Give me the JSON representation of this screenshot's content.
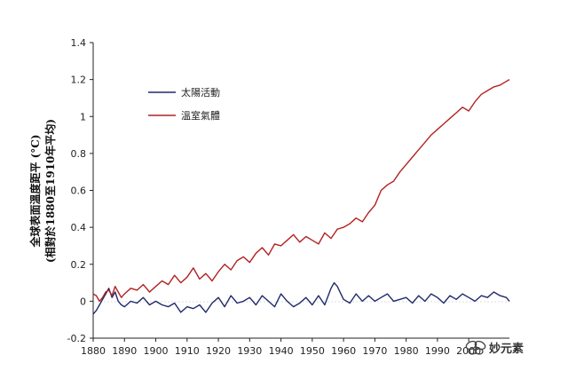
{
  "chart_data": {
    "type": "line",
    "ylabel_line1": "全球表面溫度距平 (°C)",
    "ylabel_line2": "(相對於1880至1910年平均)",
    "xlim": [
      1880,
      2013
    ],
    "ylim": [
      -0.2,
      1.4
    ],
    "x_ticks": [
      1880,
      1890,
      1900,
      1910,
      1920,
      1930,
      1940,
      1950,
      1960,
      1970,
      1980,
      1990,
      2000
    ],
    "x_tick_labels": [
      "1880",
      "1890",
      "1900",
      "1910",
      "1920",
      "1930",
      "1940",
      "1950",
      "1960",
      "1970",
      "1980",
      "1990",
      "2000"
    ],
    "y_ticks": [
      -0.2,
      0,
      0.2,
      0.4,
      0.6,
      0.8,
      1,
      1.2,
      1.4
    ],
    "y_tick_labels": [
      "-0.2",
      "0",
      "0.2",
      "0.4",
      "0.6",
      "0.8",
      "1",
      "1.2",
      "1.4"
    ],
    "grid": false,
    "legend_position": "upper-left",
    "series": [
      {
        "name": "太陽活動",
        "color": "#1f2a6b",
        "x": [
          1880,
          1881,
          1882,
          1883,
          1884,
          1885,
          1886,
          1887,
          1888,
          1889,
          1890,
          1892,
          1894,
          1896,
          1898,
          1900,
          1902,
          1904,
          1906,
          1908,
          1910,
          1912,
          1914,
          1916,
          1918,
          1920,
          1922,
          1924,
          1926,
          1928,
          1930,
          1932,
          1934,
          1936,
          1938,
          1940,
          1942,
          1944,
          1946,
          1948,
          1950,
          1952,
          1954,
          1956,
          1957,
          1958,
          1960,
          1962,
          1964,
          1966,
          1968,
          1970,
          1972,
          1974,
          1976,
          1978,
          1980,
          1982,
          1984,
          1986,
          1988,
          1990,
          1992,
          1994,
          1996,
          1998,
          2000,
          2002,
          2004,
          2006,
          2008,
          2010,
          2012,
          2013
        ],
        "y": [
          -0.07,
          -0.05,
          -0.02,
          0.01,
          0.04,
          0.07,
          0.02,
          0.05,
          0.0,
          -0.02,
          -0.03,
          0.0,
          -0.01,
          0.02,
          -0.02,
          0.0,
          -0.02,
          -0.03,
          -0.01,
          -0.06,
          -0.03,
          -0.04,
          -0.02,
          -0.06,
          -0.01,
          0.02,
          -0.03,
          0.03,
          -0.01,
          0.0,
          0.02,
          -0.02,
          0.03,
          0.0,
          -0.03,
          0.04,
          0.0,
          -0.03,
          -0.01,
          0.02,
          -0.02,
          0.03,
          -0.02,
          0.07,
          0.1,
          0.08,
          0.01,
          -0.01,
          0.04,
          0.0,
          0.03,
          0.0,
          0.02,
          0.04,
          0.0,
          0.01,
          0.02,
          -0.01,
          0.03,
          0.0,
          0.04,
          0.02,
          -0.01,
          0.03,
          0.01,
          0.04,
          0.02,
          0.0,
          0.03,
          0.02,
          0.05,
          0.03,
          0.02,
          0.0
        ]
      },
      {
        "name": "溫室氣體",
        "color": "#b22222",
        "x": [
          1880,
          1881,
          1882,
          1883,
          1884,
          1885,
          1886,
          1887,
          1888,
          1889,
          1890,
          1892,
          1894,
          1896,
          1898,
          1900,
          1902,
          1904,
          1906,
          1908,
          1910,
          1912,
          1914,
          1916,
          1918,
          1920,
          1922,
          1924,
          1926,
          1928,
          1930,
          1932,
          1934,
          1936,
          1938,
          1940,
          1942,
          1944,
          1946,
          1948,
          1950,
          1952,
          1954,
          1956,
          1958,
          1960,
          1962,
          1964,
          1966,
          1968,
          1970,
          1972,
          1974,
          1976,
          1978,
          1980,
          1982,
          1984,
          1986,
          1988,
          1990,
          1992,
          1994,
          1996,
          1998,
          2000,
          2002,
          2004,
          2006,
          2008,
          2010,
          2012,
          2013
        ],
        "y": [
          0.04,
          0.03,
          0.0,
          0.02,
          0.05,
          0.06,
          0.03,
          0.08,
          0.05,
          0.02,
          0.04,
          0.07,
          0.06,
          0.09,
          0.05,
          0.08,
          0.11,
          0.09,
          0.14,
          0.1,
          0.13,
          0.18,
          0.12,
          0.15,
          0.11,
          0.16,
          0.2,
          0.17,
          0.22,
          0.24,
          0.21,
          0.26,
          0.29,
          0.25,
          0.31,
          0.3,
          0.33,
          0.36,
          0.32,
          0.35,
          0.33,
          0.31,
          0.37,
          0.34,
          0.39,
          0.4,
          0.42,
          0.45,
          0.43,
          0.48,
          0.52,
          0.6,
          0.63,
          0.65,
          0.7,
          0.74,
          0.78,
          0.82,
          0.86,
          0.9,
          0.93,
          0.96,
          0.99,
          1.02,
          1.05,
          1.03,
          1.08,
          1.12,
          1.14,
          1.16,
          1.17,
          1.19,
          1.2
        ]
      }
    ]
  },
  "watermark": {
    "text": "妙元素",
    "icon": "butterfly-icon"
  }
}
